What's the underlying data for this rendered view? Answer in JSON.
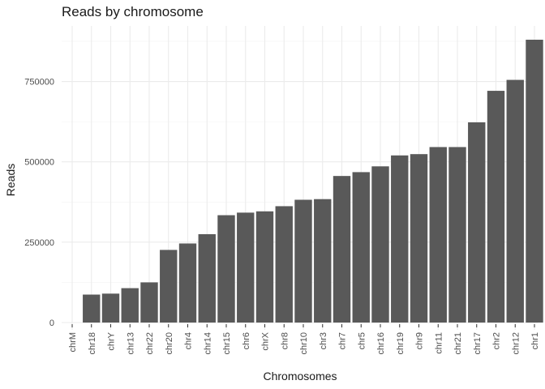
{
  "chart_data": {
    "type": "bar",
    "title": "Reads by chromosome",
    "xlabel": "Chromosomes",
    "ylabel": "Reads",
    "categories": [
      "chrM",
      "chr18",
      "chrY",
      "chr13",
      "chr22",
      "chr20",
      "chr4",
      "chr14",
      "chr15",
      "chr6",
      "chrX",
      "chr8",
      "chr10",
      "chr3",
      "chr7",
      "chr5",
      "chr16",
      "chr19",
      "chr9",
      "chr11",
      "chr21",
      "chr17",
      "chr2",
      "chr12",
      "chr1"
    ],
    "values": [
      0,
      87000,
      90000,
      107000,
      125000,
      226000,
      246000,
      275000,
      334000,
      342000,
      346000,
      362000,
      382000,
      384000,
      456000,
      468000,
      486000,
      520000,
      524000,
      546000,
      546000,
      623000,
      721000,
      755000,
      880000
    ],
    "ylim": [
      0,
      880000
    ],
    "yticks": [
      0,
      250000,
      500000,
      750000
    ],
    "ytick_labels": [
      "0",
      "250000",
      "500000",
      "750000"
    ],
    "grid": true,
    "bar_color": "#595959",
    "grid_color": "#ebebeb"
  }
}
